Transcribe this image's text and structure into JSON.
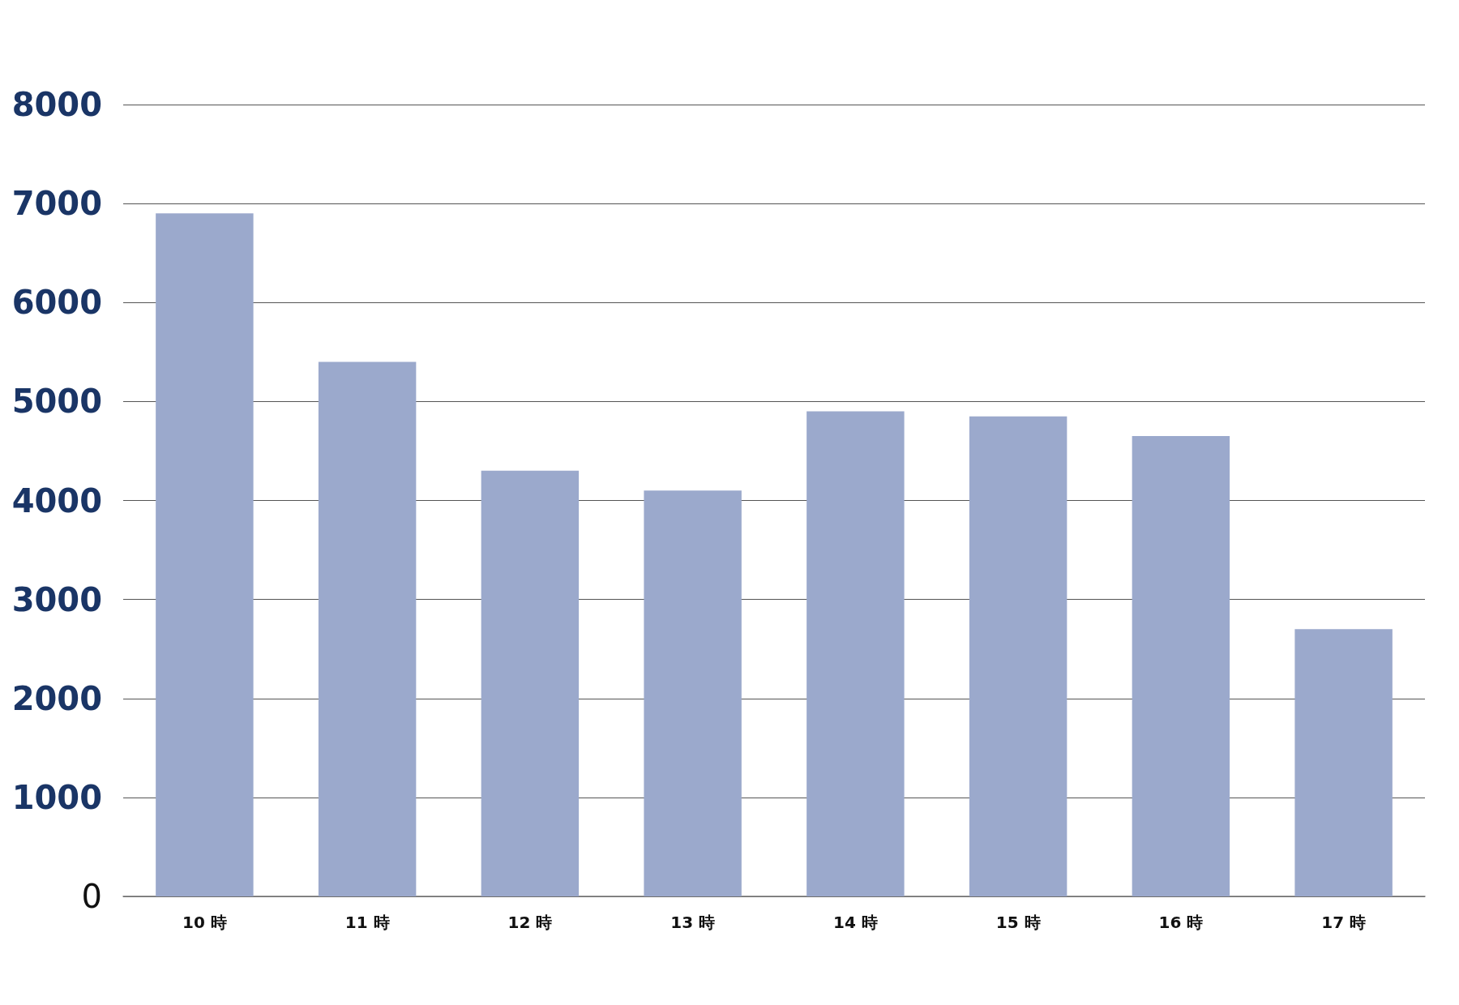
{
  "chart_data": {
    "type": "bar",
    "categories": [
      "10 時",
      "11 時",
      "12 時",
      "13 時",
      "14 時",
      "15 時",
      "16 時",
      "17 時"
    ],
    "values": [
      6900,
      5400,
      4300,
      4100,
      4900,
      4850,
      4650,
      2700
    ],
    "color": "#9ba9cc",
    "ylim": [
      0,
      8000
    ],
    "yticks": [
      0,
      1000,
      2000,
      3000,
      4000,
      5000,
      6000,
      7000,
      8000
    ],
    "grid": "y"
  }
}
